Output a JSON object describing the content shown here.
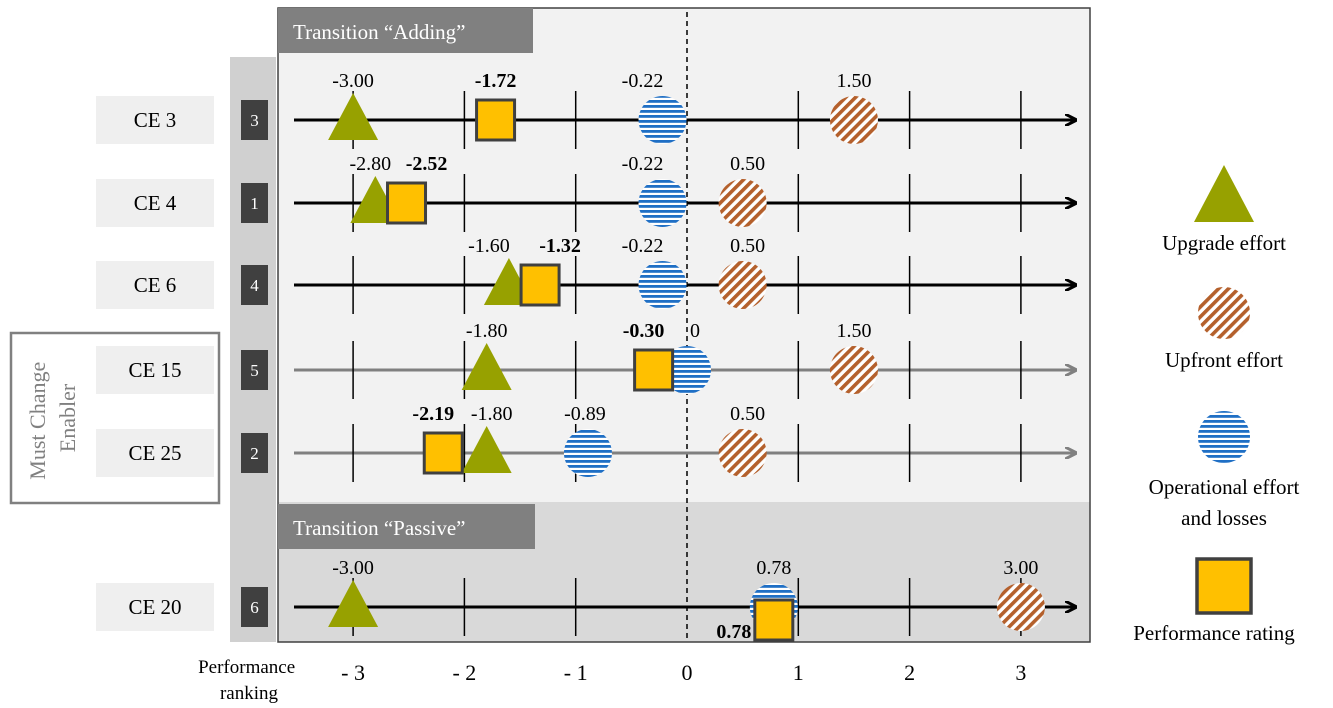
{
  "colors": {
    "upgrade": "#97a100",
    "upfront": "#b4602c",
    "operational": "#1f6fc5",
    "performance": "#ffc000",
    "panel_adding": "#f2f2f2",
    "panel_passive": "#d9d9d9",
    "header_bg": "#808080",
    "rank_box": "#404040",
    "label_box": "#efefef",
    "gray_axis": "#808080"
  },
  "labels": {
    "header_adding": "Transition “Adding”",
    "header_passive": "Transition “Passive”",
    "must_change": [
      "Must Change",
      "Enabler"
    ],
    "xaxis_title": [
      "Performance",
      "ranking"
    ]
  },
  "legend": [
    {
      "key": "upgrade",
      "label": "Upgrade  effort",
      "icon": "triangle-icon"
    },
    {
      "key": "upfront",
      "label": "Upfront effort",
      "icon": "hatched-circle-icon"
    },
    {
      "key": "operational",
      "label": "Operational effort and losses",
      "label_lines": [
        "Operational effort",
        "and losses"
      ],
      "icon": "striped-circle-icon"
    },
    {
      "key": "performance",
      "label": "Performance rating",
      "icon": "square-icon"
    }
  ],
  "chart_data": {
    "type": "scatter",
    "x_axis": {
      "range": [
        -3.5,
        3.5
      ],
      "ticks": [
        -3,
        -2,
        -1,
        0,
        1,
        2,
        3
      ],
      "tick_labels": [
        "- 3",
        "- 2",
        "- 1",
        "0",
        "1",
        "2",
        "3"
      ],
      "reference_line": 0
    },
    "rows": [
      {
        "ce": "CE 3",
        "rank": "3",
        "group": "Adding",
        "must_change": false,
        "upgrade": -3.0,
        "upfront": 1.5,
        "operational": -0.22,
        "performance": -1.72,
        "labels": {
          "upgrade": "-3.00",
          "performance": "-1.72",
          "operational": "-0.22",
          "upfront": "1.50"
        }
      },
      {
        "ce": "CE 4",
        "rank": "1",
        "group": "Adding",
        "must_change": false,
        "upgrade": -2.8,
        "upfront": 0.5,
        "operational": -0.22,
        "performance": -2.52,
        "labels": {
          "upgrade": "-2.80",
          "performance": "-2.52",
          "operational": "-0.22",
          "upfront": "0.50"
        }
      },
      {
        "ce": "CE 6",
        "rank": "4",
        "group": "Adding",
        "must_change": false,
        "upgrade": -1.6,
        "upfront": 0.5,
        "operational": -0.22,
        "performance": -1.32,
        "labels": {
          "upgrade": "-1.60",
          "performance": "-1.32",
          "operational": "-0.22",
          "upfront": "0.50"
        }
      },
      {
        "ce": "CE 15",
        "rank": "5",
        "group": "Adding",
        "must_change": true,
        "upgrade": -1.8,
        "upfront": 1.5,
        "operational": 0.0,
        "performance": -0.3,
        "labels": {
          "upgrade": "-1.80",
          "performance": "-0.30",
          "operational": "0",
          "upfront": "1.50"
        }
      },
      {
        "ce": "CE 25",
        "rank": "2",
        "group": "Adding",
        "must_change": true,
        "upgrade": -1.8,
        "upfront": 0.5,
        "operational": -0.89,
        "performance": -2.19,
        "labels": {
          "upgrade": "-1.80",
          "performance": "-2.19",
          "operational": "-0.89",
          "upfront": "0.50"
        }
      },
      {
        "ce": "CE 20",
        "rank": "6",
        "group": "Passive",
        "must_change": false,
        "upgrade": -3.0,
        "upfront": 3.0,
        "operational": 0.78,
        "performance": 0.78,
        "labels": {
          "upgrade": "-3.00",
          "performance": "0.78",
          "operational": "0.78",
          "upfront": "3.00"
        }
      }
    ]
  }
}
